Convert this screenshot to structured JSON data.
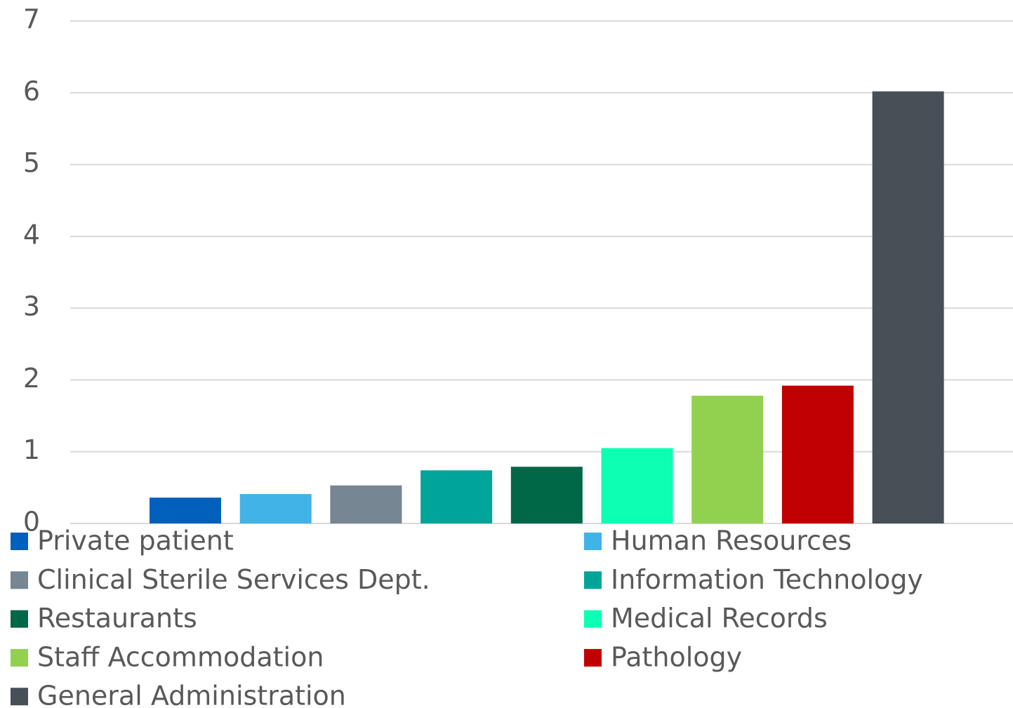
{
  "chart_data": {
    "type": "bar",
    "categories": [
      null
    ],
    "series": [
      {
        "name": "Private patient",
        "color": "#0060bc",
        "values": [
          0.36
        ]
      },
      {
        "name": "Human Resources",
        "color": "#41b3e6",
        "values": [
          0.41
        ]
      },
      {
        "name": "Clinical Sterile Services Dept.",
        "color": "#768692",
        "values": [
          0.53
        ]
      },
      {
        "name": "Information Technology",
        "color": "#00a499",
        "values": [
          0.74
        ]
      },
      {
        "name": "Restaurants",
        "color": "#006747",
        "values": [
          0.79
        ]
      },
      {
        "name": "Medical Records",
        "color": "#0dffb4",
        "values": [
          1.05
        ]
      },
      {
        "name": "Staff Accommodation",
        "color": "#92d050",
        "values": [
          1.78
        ]
      },
      {
        "name": "Pathology",
        "color": "#c00000",
        "values": [
          1.92
        ]
      },
      {
        "name": "General Administration",
        "color": "#474f57",
        "values": [
          6.02
        ]
      }
    ],
    "ylim": [
      0,
      7
    ],
    "yticks": [
      0,
      1,
      2,
      3,
      4,
      5,
      6,
      7
    ],
    "grid": true,
    "legend": "bottom"
  }
}
